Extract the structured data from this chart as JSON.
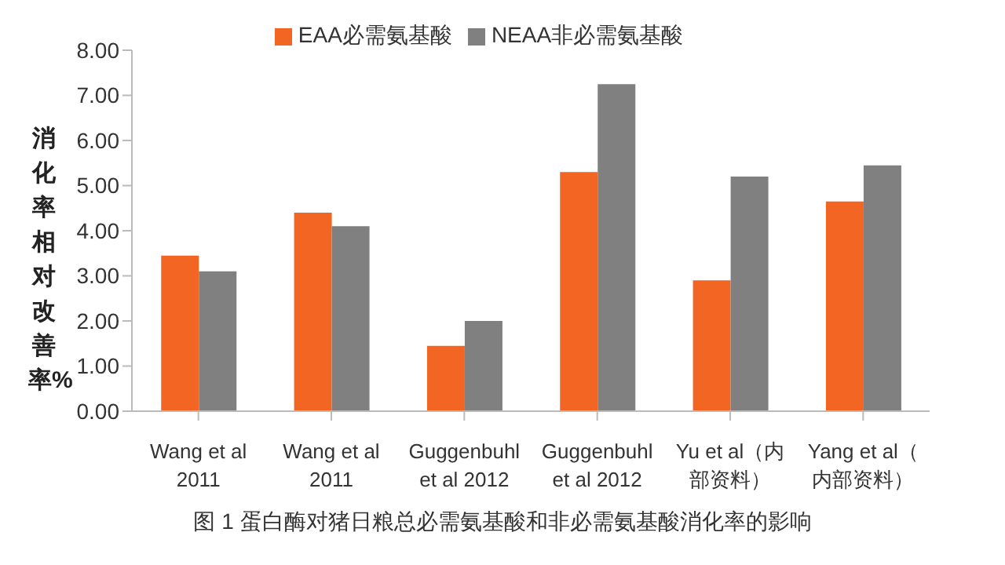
{
  "chart_data": {
    "type": "bar",
    "title": "图 1 蛋白酶对猪日粮总必需氨基酸和非必需氨基酸消化率的影响",
    "ylabel": "消化率相对改善率%",
    "categories": [
      "Wang et al 2011",
      "Wang et al 2011",
      "Guggenbuhl et al 2012",
      "Guggenbuhl et al 2012",
      "Yu et al（内部资料）",
      "Yang et al（内部资料）"
    ],
    "series": [
      {
        "name": "EAA必需氨基酸",
        "color": "#f26522",
        "values": [
          3.45,
          4.4,
          1.45,
          5.3,
          2.9,
          4.65
        ]
      },
      {
        "name": "NEAA非必需氨基酸",
        "color": "#808080",
        "values": [
          3.1,
          4.1,
          2.0,
          7.25,
          5.2,
          5.45
        ]
      }
    ],
    "ylim": [
      0,
      8
    ],
    "yticks": [
      {
        "value": 0,
        "label": "0.00"
      },
      {
        "value": 1,
        "label": "1.00"
      },
      {
        "value": 2,
        "label": "2.00"
      },
      {
        "value": 3,
        "label": "3.00"
      },
      {
        "value": 4,
        "label": "4.00"
      },
      {
        "value": 5,
        "label": "5.00"
      },
      {
        "value": 6,
        "label": "6.00"
      },
      {
        "value": 7,
        "label": "7.00"
      },
      {
        "value": 8,
        "label": "8.00"
      }
    ],
    "grid": false,
    "legend": "top"
  }
}
